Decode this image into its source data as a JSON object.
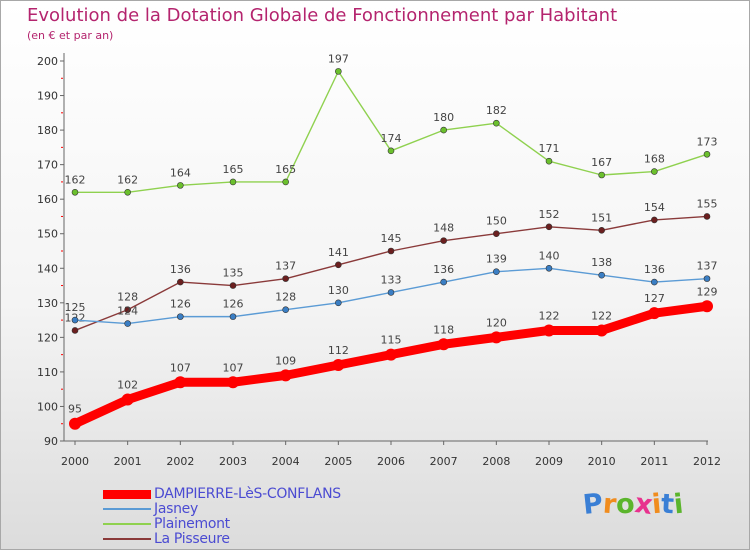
{
  "title": "Evolution de la Dotation Globale de Fonctionnement par Habitant",
  "subtitle": "(en € et par an)",
  "brand": "Proxiti",
  "brand_colors": [
    "#3a7fd5",
    "#f08c1e",
    "#5bb52c",
    "#e8328e",
    "#f08c1e",
    "#3a7fd5",
    "#5bb52c"
  ],
  "chart_data": {
    "type": "line",
    "x": [
      "2000",
      "2001",
      "2002",
      "2003",
      "2004",
      "2005",
      "2006",
      "2007",
      "2008",
      "2009",
      "2010",
      "2011",
      "2012"
    ],
    "ylim": [
      90,
      200
    ],
    "yticks": [
      90,
      100,
      110,
      120,
      130,
      140,
      150,
      160,
      170,
      180,
      190,
      200
    ],
    "grid": false,
    "legend_position": "bottom-left",
    "series": [
      {
        "name": "Plainemont",
        "color": "#8fd14f",
        "marker": "#6bc02d",
        "values": [
          162,
          162,
          164,
          165,
          165,
          197,
          174,
          180,
          182,
          171,
          167,
          168,
          173
        ]
      },
      {
        "name": "La Pisseure",
        "color": "#8a3a3a",
        "marker": "#6b1f1f",
        "values": [
          122,
          128,
          136,
          135,
          137,
          141,
          145,
          148,
          150,
          152,
          151,
          154,
          155
        ]
      },
      {
        "name": "Jasney",
        "color": "#5b9bd5",
        "marker": "#3a7ec4",
        "values": [
          125,
          124,
          126,
          126,
          128,
          130,
          133,
          136,
          139,
          140,
          138,
          136,
          137
        ]
      },
      {
        "name": "DAMPIERRE-LèS-CONFLANS",
        "color": "#ff0000",
        "marker": "#e00000",
        "values": [
          95,
          102,
          107,
          107,
          109,
          112,
          115,
          118,
          120,
          122,
          122,
          127,
          129
        ]
      }
    ],
    "legend_order": [
      "DAMPIERRE-LèS-CONFLANS",
      "Jasney",
      "Plainemont",
      "La Pisseure"
    ]
  }
}
